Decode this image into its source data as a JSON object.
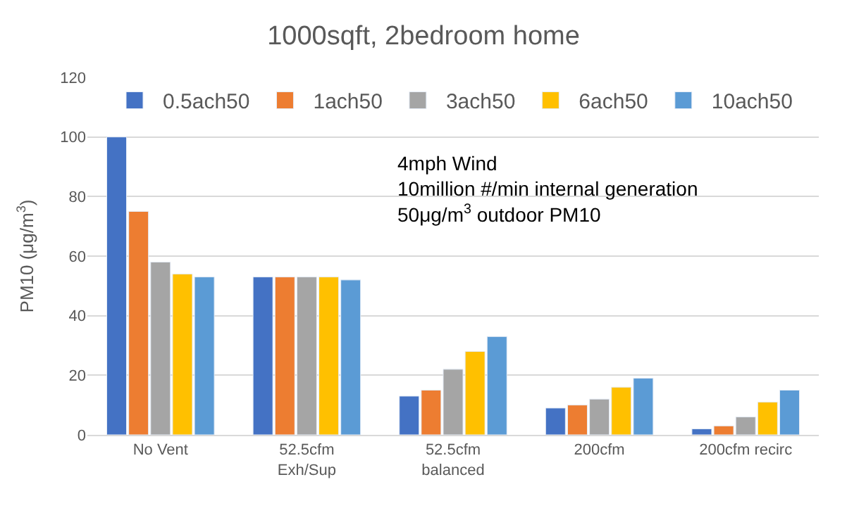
{
  "chart_data": {
    "type": "bar",
    "title": "1000sqft, 2bedroom home",
    "ylabel": "PM10 (μg/m$^{3}$)",
    "categories": [
      "No Vent",
      "52.5cfm\nExh/Sup",
      "52.5cfm\nbalanced",
      "200cfm",
      "200cfm recirc"
    ],
    "series": [
      {
        "name": "0.5ach50",
        "color": "#4472c4",
        "values": [
          100,
          53,
          13,
          9,
          2
        ]
      },
      {
        "name": "1ach50",
        "color": "#ed7d31",
        "values": [
          75,
          53,
          15,
          10,
          3
        ]
      },
      {
        "name": "3ach50",
        "color": "#a5a5a5",
        "values": [
          58,
          53,
          22,
          12,
          6
        ]
      },
      {
        "name": "6ach50",
        "color": "#ffc000",
        "values": [
          54,
          53,
          28,
          16,
          11
        ]
      },
      {
        "name": "10ach50",
        "color": "#5b9bd5",
        "values": [
          53,
          52,
          33,
          19,
          15
        ]
      }
    ],
    "ylim": [
      0,
      120
    ],
    "yticks": [
      0,
      20,
      40,
      60,
      80,
      100,
      120
    ],
    "grid": "y",
    "legend": "top",
    "annotations": [
      "4mph Wind\n10million #/min internal generation\n50μg/m$^{3}$ outdoor PM10"
    ]
  }
}
